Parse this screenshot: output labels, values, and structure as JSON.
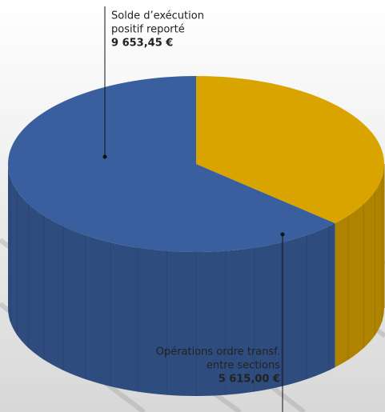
{
  "chart_data": {
    "type": "pie3d",
    "categories": [
      [
        "Opérations ordre transf.",
        "entre sections"
      ],
      [
        "Solde d’exécution",
        "positif reporté"
      ]
    ],
    "values": [
      5615.0,
      9653.45
    ],
    "value_labels": [
      "5 615,00 €",
      "9 653,45 €"
    ],
    "colors": [
      "#d9a400",
      "#3a5f9e"
    ]
  }
}
